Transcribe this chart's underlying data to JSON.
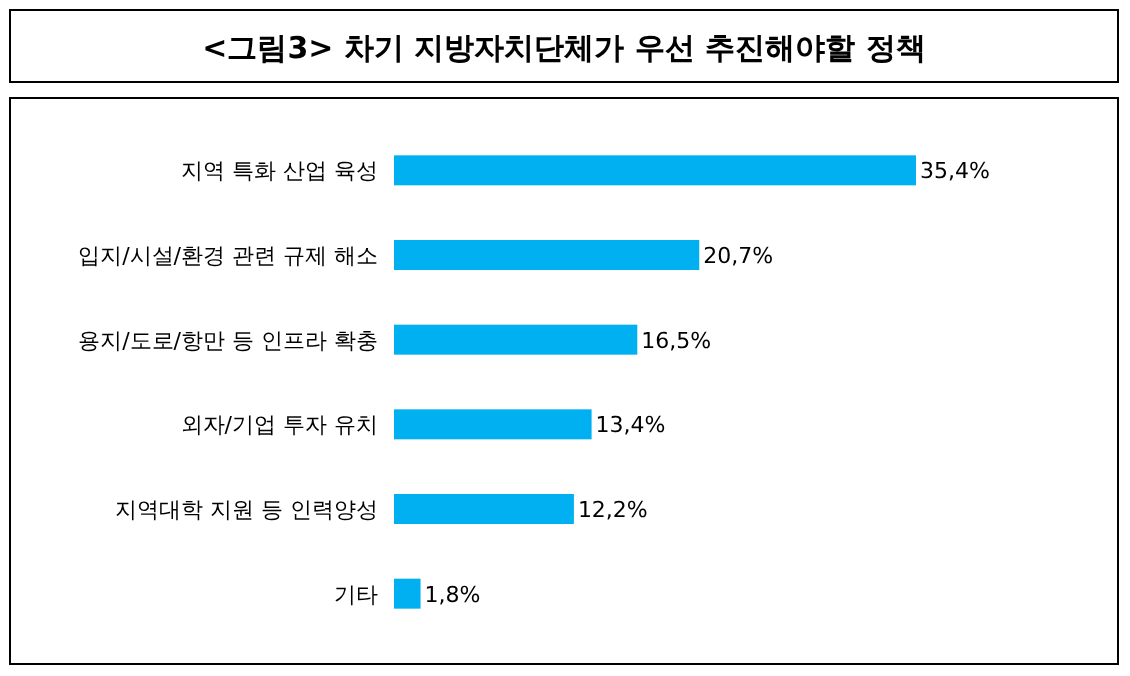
{
  "chart_data": {
    "type": "bar",
    "orientation": "horizontal",
    "title": "<그림3> 차기 지방자치단체가 우선 추진해야할 정책",
    "categories": [
      "지역 특화 산업 육성",
      "입지/시설/환경 관련 규제 해소",
      "용지/도로/항만 등 인프라 확충",
      "외자/기업 투자 유치",
      "지역대학 지원 등 인력양성",
      "기타"
    ],
    "values": [
      35.4,
      20.7,
      16.5,
      13.4,
      12.2,
      1.8
    ],
    "value_labels": [
      "35,4%",
      "20,7%",
      "16,5%",
      "13,4%",
      "12,2%",
      "1,8%"
    ],
    "color": "#00b0f0"
  }
}
